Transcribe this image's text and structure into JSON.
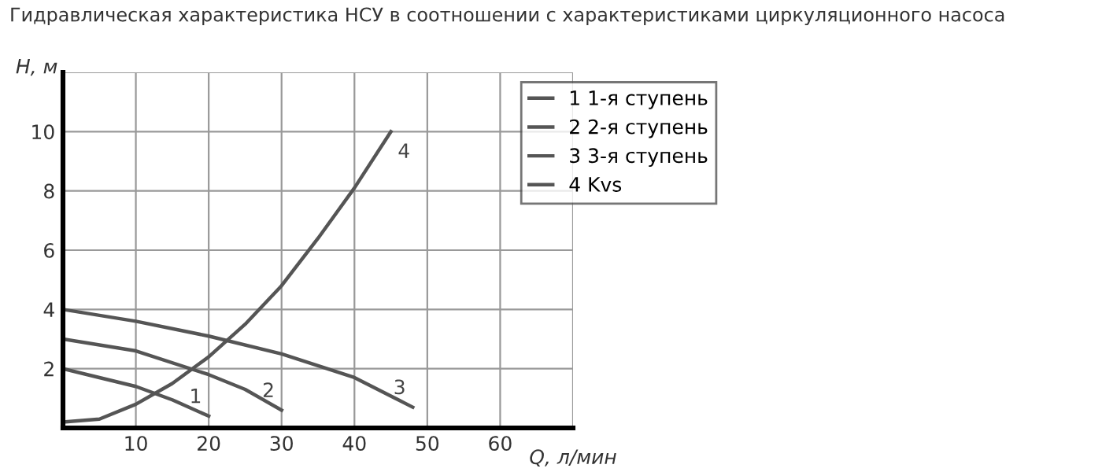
{
  "chart_data": {
    "type": "line",
    "title": "Гидравлическая характеристика НСУ в соотношении с характеристиками циркуляционного насоса",
    "xlabel": "Q, л/мин",
    "ylabel": "H, м",
    "xlim": [
      0,
      70
    ],
    "ylim": [
      0,
      12
    ],
    "xticks": [
      10,
      20,
      30,
      40,
      50,
      60
    ],
    "yticks": [
      2,
      4,
      6,
      8,
      10
    ],
    "grid": true,
    "legend": "top right",
    "series": [
      {
        "name": "1 1-я ступень",
        "color": "#555555",
        "x": [
          0,
          5,
          10,
          15,
          20
        ],
        "values": [
          2.0,
          1.7,
          1.4,
          0.95,
          0.4
        ]
      },
      {
        "name": "2 2-я ступень",
        "color": "#555555",
        "x": [
          0,
          10,
          20,
          25,
          30
        ],
        "values": [
          3.0,
          2.6,
          1.8,
          1.3,
          0.6
        ]
      },
      {
        "name": "3 3-я ступень",
        "color": "#555555",
        "x": [
          0,
          10,
          20,
          30,
          40,
          48
        ],
        "values": [
          4.0,
          3.6,
          3.1,
          2.5,
          1.7,
          0.7
        ]
      },
      {
        "name": "4 Kvs",
        "color": "#555555",
        "x": [
          0,
          5,
          10,
          15,
          20,
          25,
          30,
          35,
          40,
          45
        ],
        "values": [
          0.2,
          0.3,
          0.8,
          1.5,
          2.4,
          3.5,
          4.8,
          6.4,
          8.1,
          10.0
        ]
      }
    ],
    "annotations": [
      "1",
      "2",
      "3",
      "4"
    ]
  }
}
